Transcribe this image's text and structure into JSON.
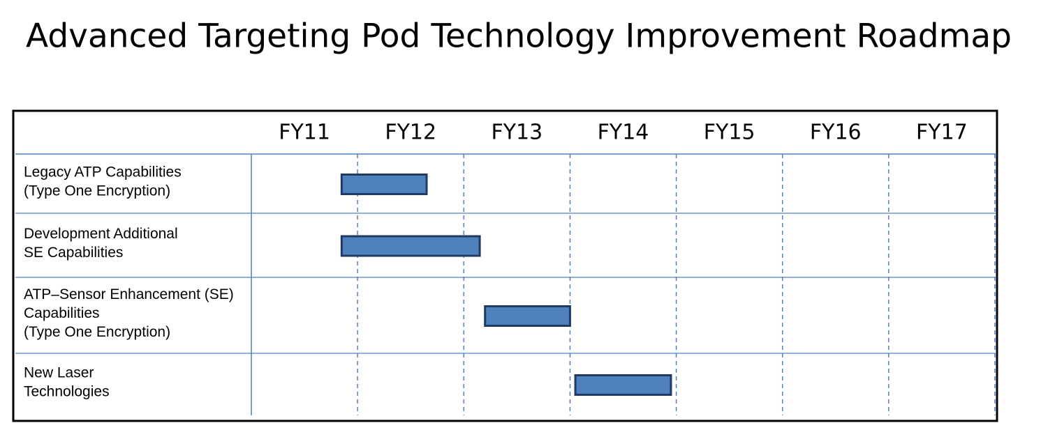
{
  "chart_data": {
    "type": "gantt",
    "title": "Advanced Targeting Pod Technology Improvement Roadmap",
    "categories": [
      "FY11",
      "FY12",
      "FY13",
      "FY14",
      "FY15",
      "FY16",
      "FY17"
    ],
    "xlim": [
      11,
      18
    ],
    "color": "#4f81bd",
    "tasks": [
      {
        "label": [
          "Legacy ATP Capabilities",
          "(Type One Encryption)"
        ],
        "start": 11.85,
        "end": 12.65
      },
      {
        "label": [
          "Development Additional",
          "SE Capabilities"
        ],
        "start": 11.85,
        "end": 13.15
      },
      {
        "label": [
          "ATP–Sensor Enhancement (SE)",
          "Capabilities",
          "(Type One Encryption)"
        ],
        "start": 13.2,
        "end": 14.0
      },
      {
        "label": [
          "New Laser",
          "Technologies"
        ],
        "start": 14.05,
        "end": 14.95
      }
    ]
  }
}
